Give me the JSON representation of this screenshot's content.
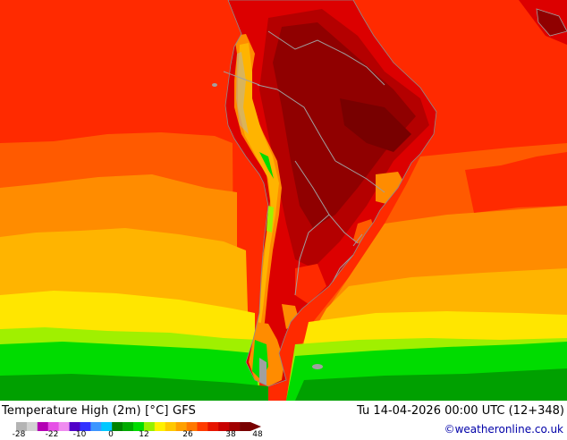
{
  "header": {
    "title": "Temperature High (2m) [°C] GFS",
    "datetime": "Tu 14-04-2026 00:00 UTC (12+348)"
  },
  "credit": "©weatheronline.co.uk",
  "legend": {
    "tick_labels": [
      "-28",
      "-22",
      "-10",
      "0",
      "12",
      "26",
      "38",
      "48"
    ],
    "colors": [
      "#b4b4b4",
      "#d2d2d2",
      "#b400b4",
      "#e650e6",
      "#f08cf0",
      "#5000c8",
      "#3232ff",
      "#3c96ff",
      "#00c8ff",
      "#008200",
      "#00aa00",
      "#00dc00",
      "#96f000",
      "#fff000",
      "#ffc800",
      "#ffa000",
      "#ff7800",
      "#ff3c00",
      "#e61400",
      "#c80000",
      "#a00000",
      "#780000"
    ]
  },
  "map": {
    "region": "South America",
    "palette": {
      "ocean_hot": "#ff2a00",
      "warm": "#ff5a00",
      "orange": "#ff8c00",
      "yellow_orange": "#ffb400",
      "yellow": "#ffe600",
      "light_green": "#a0f000",
      "green": "#00dc00",
      "dark_green": "#00a000",
      "land_hot": "#dc0000",
      "land_hotter": "#b40000",
      "land_hottest": "#900000",
      "mountains": "#a0a0a0",
      "borders": "#a0a0a0"
    }
  }
}
